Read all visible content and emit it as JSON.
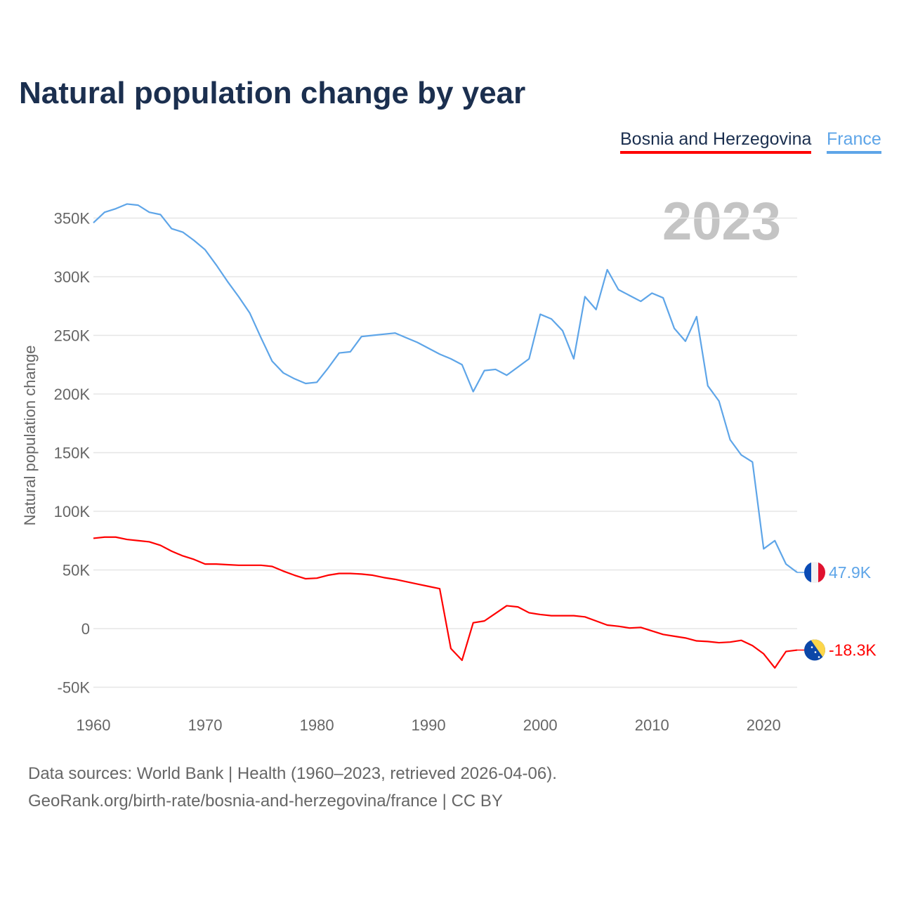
{
  "chart_data": {
    "type": "line",
    "title": "Natural population change by year",
    "ylabel": "Natural population change",
    "xlabel": "",
    "year_label": "2023",
    "ylim": [
      -50000,
      360000
    ],
    "xlim": [
      1960,
      2023
    ],
    "y_ticks": [
      {
        "v": -50000,
        "label": "-50K"
      },
      {
        "v": 0,
        "label": "0"
      },
      {
        "v": 50000,
        "label": "50K"
      },
      {
        "v": 100000,
        "label": "100K"
      },
      {
        "v": 150000,
        "label": "150K"
      },
      {
        "v": 200000,
        "label": "200K"
      },
      {
        "v": 250000,
        "label": "250K"
      },
      {
        "v": 300000,
        "label": "300K"
      },
      {
        "v": 350000,
        "label": "350K"
      }
    ],
    "x_ticks": [
      1960,
      1970,
      1980,
      1990,
      2000,
      2010,
      2020
    ],
    "grid": true,
    "legend_position": "top-right",
    "x": [
      1960,
      1961,
      1962,
      1963,
      1964,
      1965,
      1966,
      1967,
      1968,
      1969,
      1970,
      1971,
      1972,
      1973,
      1974,
      1975,
      1976,
      1977,
      1978,
      1979,
      1980,
      1981,
      1982,
      1983,
      1984,
      1985,
      1986,
      1987,
      1988,
      1989,
      1990,
      1991,
      1992,
      1993,
      1994,
      1995,
      1996,
      1997,
      1998,
      1999,
      2000,
      2001,
      2002,
      2003,
      2004,
      2005,
      2006,
      2007,
      2008,
      2009,
      2010,
      2011,
      2012,
      2013,
      2014,
      2015,
      2016,
      2017,
      2018,
      2019,
      2020,
      2021,
      2022,
      2023
    ],
    "series": [
      {
        "name": "Bosnia and Herzegovina",
        "color": "#ff0000",
        "end_label": "-18.3K",
        "flag": "bosnia-flag",
        "values": [
          77,
          78,
          78,
          76,
          75,
          74,
          71,
          66,
          62,
          59,
          55,
          55,
          54.5,
          54,
          54,
          54,
          53,
          49,
          45.5,
          42.5,
          43,
          45.5,
          47,
          47,
          46.5,
          45.5,
          43.5,
          42,
          40,
          38,
          36,
          34,
          -17,
          -27,
          5,
          6.5,
          13,
          19.5,
          18.5,
          13.5,
          12,
          11,
          11,
          11,
          10,
          6.5,
          3,
          2,
          0.5,
          1,
          -2,
          -5,
          -6.5,
          -8,
          -10.5,
          -11,
          -12,
          -11.5,
          -10,
          -14.5,
          -21.5,
          -33.5,
          -19.5,
          -18.3
        ]
      },
      {
        "name": "France",
        "color": "#5ea5e8",
        "end_label": "47.9K",
        "flag": "france-flag",
        "values": [
          346,
          355,
          358,
          362,
          361,
          355,
          353,
          341,
          338,
          331,
          323,
          310,
          296,
          283,
          269,
          248,
          228,
          218,
          213,
          209,
          210,
          222,
          235,
          236,
          249,
          250,
          251,
          252,
          248,
          244,
          239,
          234,
          230,
          225,
          202,
          220,
          221,
          216,
          223,
          230,
          268,
          264,
          254,
          230,
          283,
          272,
          306,
          289,
          284,
          279,
          286,
          282,
          256,
          245,
          266,
          207,
          194,
          161,
          148,
          142,
          68,
          75,
          55,
          47.9
        ]
      }
    ],
    "value_unit": "thousands"
  },
  "sources": {
    "line1": "Data sources: World Bank | Health (1960–2023, retrieved 2026-04-06).",
    "line2": "GeoRank.org/birth-rate/bosnia-and-herzegovina/france | CC BY"
  }
}
